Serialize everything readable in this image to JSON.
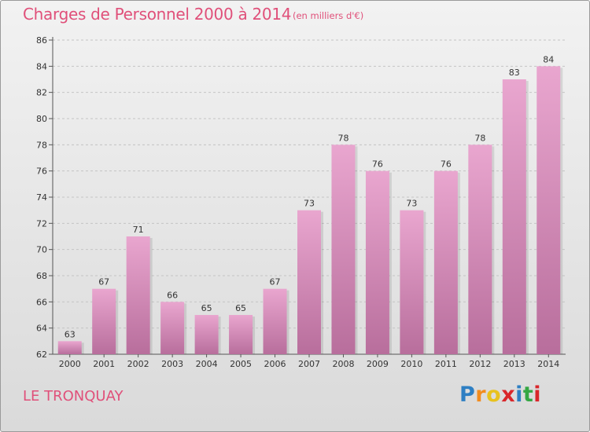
{
  "title": "Charges de Personnel 2000 à 2014",
  "subtitle": "(en milliers d'€)",
  "commune": "LE TRONQUAY",
  "logo": {
    "letters": [
      "P",
      "r",
      "o",
      "x",
      "i",
      "t",
      "i"
    ],
    "colors": [
      "#2e7fc3",
      "#f28c1e",
      "#e8c21e",
      "#d9262a",
      "#2e7fc3",
      "#35a744",
      "#d9262a"
    ]
  },
  "colors": {
    "title": "#e0507a",
    "bar_top": "#e9a6cf",
    "bar_bottom": "#b86e9c"
  },
  "chart_data": {
    "type": "bar",
    "categories": [
      "2000",
      "2001",
      "2002",
      "2003",
      "2004",
      "2005",
      "2006",
      "2007",
      "2008",
      "2009",
      "2010",
      "2011",
      "2012",
      "2013",
      "2014"
    ],
    "values": [
      63,
      67,
      71,
      66,
      65,
      65,
      67,
      73,
      78,
      76,
      73,
      76,
      78,
      83,
      84
    ],
    "ylim": [
      62,
      86
    ],
    "yticks": [
      62,
      64,
      66,
      68,
      70,
      72,
      74,
      76,
      78,
      80,
      82,
      84,
      86
    ],
    "grid": true,
    "data_labels": true
  }
}
